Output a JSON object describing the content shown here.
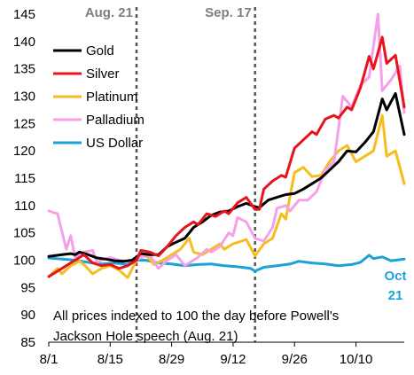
{
  "chart_data": {
    "type": "line",
    "title": "",
    "xlabel": "",
    "ylabel": "",
    "ylim": [
      85,
      145
    ],
    "yticks": [
      85,
      90,
      95,
      100,
      105,
      110,
      115,
      120,
      125,
      130,
      135,
      140,
      145
    ],
    "xlim": [
      "2020-08-01",
      "2020-10-21"
    ],
    "xticks": [
      {
        "date": "2020-08-01",
        "label": "8/1"
      },
      {
        "date": "2020-08-15",
        "label": "8/15"
      },
      {
        "date": "2020-08-29",
        "label": "8/29"
      },
      {
        "date": "2020-09-12",
        "label": "9/12"
      },
      {
        "date": "2020-09-26",
        "label": "9/26"
      },
      {
        "date": "2020-10-10",
        "label": "10/10"
      }
    ],
    "legend_position": "top-left",
    "grid": false,
    "annotations": {
      "vlines": [
        {
          "date": "2020-08-21",
          "label": "Aug. 21"
        },
        {
          "date": "2020-09-17",
          "label": "Sep. 17"
        }
      ],
      "note_line1": "All prices indexed to 100 the day before Powell's",
      "note_line2": "Jackson Hole speech (Aug. 21)",
      "end_label_line1": "Oct",
      "end_label_line2": "21",
      "end_label_color": "#1aa3d8"
    },
    "series": [
      {
        "name": "Gold",
        "color": "#000000",
        "points": [
          [
            "2020-08-01",
            100.7
          ],
          [
            "2020-08-04",
            101.0
          ],
          [
            "2020-08-06",
            101.2
          ],
          [
            "2020-08-07",
            101.0
          ],
          [
            "2020-08-08",
            101.5
          ],
          [
            "2020-08-10",
            101.0
          ],
          [
            "2020-08-12",
            100.4
          ],
          [
            "2020-08-14",
            100.2
          ],
          [
            "2020-08-16",
            99.9
          ],
          [
            "2020-08-18",
            99.8
          ],
          [
            "2020-08-20",
            100.0
          ],
          [
            "2020-08-22",
            101.2
          ],
          [
            "2020-08-24",
            101.0
          ],
          [
            "2020-08-26",
            101.0
          ],
          [
            "2020-08-28",
            102.5
          ],
          [
            "2020-08-30",
            103.3
          ],
          [
            "2020-09-01",
            104.0
          ],
          [
            "2020-09-03",
            106.0
          ],
          [
            "2020-09-05",
            107.0
          ],
          [
            "2020-09-07",
            108.2
          ],
          [
            "2020-09-09",
            108.8
          ],
          [
            "2020-09-11",
            109.0
          ],
          [
            "2020-09-13",
            109.8
          ],
          [
            "2020-09-15",
            110.4
          ],
          [
            "2020-09-17",
            109.8
          ],
          [
            "2020-09-18",
            109.6
          ],
          [
            "2020-09-20",
            111.0
          ],
          [
            "2020-09-22",
            111.5
          ],
          [
            "2020-09-24",
            112.0
          ],
          [
            "2020-09-26",
            112.2
          ],
          [
            "2020-09-28",
            113.0
          ],
          [
            "2020-09-30",
            114.0
          ],
          [
            "2020-10-02",
            115.0
          ],
          [
            "2020-10-04",
            116.5
          ],
          [
            "2020-10-06",
            118.0
          ],
          [
            "2020-10-08",
            120.0
          ],
          [
            "2020-10-10",
            119.8
          ],
          [
            "2020-10-12",
            121.5
          ],
          [
            "2020-10-14",
            123.5
          ],
          [
            "2020-10-16",
            129.5
          ],
          [
            "2020-10-17",
            127.5
          ],
          [
            "2020-10-19",
            130.5
          ],
          [
            "2020-10-21",
            123.0
          ]
        ]
      },
      {
        "name": "Silver",
        "color": "#e8141b",
        "points": [
          [
            "2020-08-01",
            97.0
          ],
          [
            "2020-08-03",
            98.0
          ],
          [
            "2020-08-05",
            99.0
          ],
          [
            "2020-08-07",
            100.0
          ],
          [
            "2020-08-09",
            101.0
          ],
          [
            "2020-08-11",
            99.5
          ],
          [
            "2020-08-13",
            99.0
          ],
          [
            "2020-08-15",
            99.2
          ],
          [
            "2020-08-17",
            98.5
          ],
          [
            "2020-08-19",
            99.0
          ],
          [
            "2020-08-21",
            100.0
          ],
          [
            "2020-08-22",
            101.8
          ],
          [
            "2020-08-24",
            101.5
          ],
          [
            "2020-08-26",
            100.8
          ],
          [
            "2020-08-28",
            102.5
          ],
          [
            "2020-08-30",
            104.5
          ],
          [
            "2020-09-01",
            106.0
          ],
          [
            "2020-09-03",
            107.0
          ],
          [
            "2020-09-04",
            106.5
          ],
          [
            "2020-09-06",
            108.5
          ],
          [
            "2020-09-08",
            108.0
          ],
          [
            "2020-09-10",
            109.0
          ],
          [
            "2020-09-11",
            108.5
          ],
          [
            "2020-09-13",
            110.5
          ],
          [
            "2020-09-15",
            111.5
          ],
          [
            "2020-09-17",
            109.3
          ],
          [
            "2020-09-18",
            109.3
          ],
          [
            "2020-09-19",
            113.0
          ],
          [
            "2020-09-21",
            114.5
          ],
          [
            "2020-09-23",
            115.5
          ],
          [
            "2020-09-24",
            115.2
          ],
          [
            "2020-09-26",
            120.5
          ],
          [
            "2020-09-28",
            122.0
          ],
          [
            "2020-09-30",
            123.5
          ],
          [
            "2020-10-01",
            123.0
          ],
          [
            "2020-10-03",
            125.8
          ],
          [
            "2020-10-05",
            126.5
          ],
          [
            "2020-10-06",
            126.0
          ],
          [
            "2020-10-08",
            128.0
          ],
          [
            "2020-10-09",
            127.5
          ],
          [
            "2020-10-11",
            131.5
          ],
          [
            "2020-10-13",
            137.3
          ],
          [
            "2020-10-14",
            135.0
          ],
          [
            "2020-10-16",
            140.8
          ],
          [
            "2020-10-17",
            136.0
          ],
          [
            "2020-10-19",
            137.5
          ],
          [
            "2020-10-21",
            128.0
          ]
        ]
      },
      {
        "name": "Platinum",
        "color": "#f5bd1f",
        "points": [
          [
            "2020-08-01",
            97.0
          ],
          [
            "2020-08-03",
            98.5
          ],
          [
            "2020-08-04",
            97.5
          ],
          [
            "2020-08-06",
            99.0
          ],
          [
            "2020-08-08",
            99.8
          ],
          [
            "2020-08-09",
            99.2
          ],
          [
            "2020-08-11",
            97.5
          ],
          [
            "2020-08-13",
            98.5
          ],
          [
            "2020-08-15",
            99.0
          ],
          [
            "2020-08-17",
            98.2
          ],
          [
            "2020-08-19",
            96.8
          ],
          [
            "2020-08-21",
            100.0
          ],
          [
            "2020-08-22",
            101.5
          ],
          [
            "2020-08-23",
            101.0
          ],
          [
            "2020-08-25",
            99.2
          ],
          [
            "2020-08-27",
            100.0
          ],
          [
            "2020-08-29",
            101.0
          ],
          [
            "2020-08-31",
            102.0
          ],
          [
            "2020-09-02",
            104.0
          ],
          [
            "2020-09-03",
            101.5
          ],
          [
            "2020-09-05",
            101.0
          ],
          [
            "2020-09-07",
            102.0
          ],
          [
            "2020-09-09",
            103.0
          ],
          [
            "2020-09-10",
            102.0
          ],
          [
            "2020-09-12",
            103.0
          ],
          [
            "2020-09-14",
            103.5
          ],
          [
            "2020-09-15",
            103.8
          ],
          [
            "2020-09-17",
            100.8
          ],
          [
            "2020-09-19",
            103.0
          ],
          [
            "2020-09-21",
            104.0
          ],
          [
            "2020-09-23",
            108.5
          ],
          [
            "2020-09-24",
            107.5
          ],
          [
            "2020-09-26",
            116.0
          ],
          [
            "2020-09-28",
            117.0
          ],
          [
            "2020-09-30",
            115.3
          ],
          [
            "2020-10-02",
            115.5
          ],
          [
            "2020-10-04",
            118.0
          ],
          [
            "2020-10-06",
            120.0
          ],
          [
            "2020-10-08",
            121.0
          ],
          [
            "2020-10-10",
            118.0
          ],
          [
            "2020-10-12",
            119.0
          ],
          [
            "2020-10-14",
            120.0
          ],
          [
            "2020-10-16",
            126.5
          ],
          [
            "2020-10-17",
            119.0
          ],
          [
            "2020-10-19",
            120.0
          ],
          [
            "2020-10-21",
            114.0
          ]
        ]
      },
      {
        "name": "Palladium",
        "color": "#f7a0ea",
        "points": [
          [
            "2020-08-01",
            109.0
          ],
          [
            "2020-08-03",
            108.5
          ],
          [
            "2020-08-05",
            102.0
          ],
          [
            "2020-08-06",
            104.5
          ],
          [
            "2020-08-07",
            100.5
          ],
          [
            "2020-08-09",
            101.5
          ],
          [
            "2020-08-11",
            101.8
          ],
          [
            "2020-08-12",
            99.5
          ],
          [
            "2020-08-13",
            100.0
          ],
          [
            "2020-08-15",
            100.5
          ],
          [
            "2020-08-17",
            100.0
          ],
          [
            "2020-08-19",
            99.8
          ],
          [
            "2020-08-21",
            100.0
          ],
          [
            "2020-08-22",
            100.5
          ],
          [
            "2020-08-24",
            101.0
          ],
          [
            "2020-08-26",
            98.5
          ],
          [
            "2020-08-28",
            100.0
          ],
          [
            "2020-08-30",
            101.0
          ],
          [
            "2020-09-01",
            99.0
          ],
          [
            "2020-09-02",
            99.5
          ],
          [
            "2020-09-04",
            100.5
          ],
          [
            "2020-09-06",
            102.0
          ],
          [
            "2020-09-07",
            101.5
          ],
          [
            "2020-09-09",
            102.5
          ],
          [
            "2020-09-11",
            105.0
          ],
          [
            "2020-09-12",
            104.5
          ],
          [
            "2020-09-13",
            107.8
          ],
          [
            "2020-09-15",
            107.0
          ],
          [
            "2020-09-17",
            104.0
          ],
          [
            "2020-09-19",
            103.5
          ],
          [
            "2020-09-21",
            106.0
          ],
          [
            "2020-09-22",
            109.5
          ],
          [
            "2020-09-24",
            110.0
          ],
          [
            "2020-09-25",
            109.0
          ],
          [
            "2020-09-27",
            111.0
          ],
          [
            "2020-09-29",
            111.0
          ],
          [
            "2020-10-01",
            112.5
          ],
          [
            "2020-10-03",
            116.5
          ],
          [
            "2020-10-05",
            118.0
          ],
          [
            "2020-10-07",
            130.0
          ],
          [
            "2020-10-09",
            128.0
          ],
          [
            "2020-10-11",
            132.0
          ],
          [
            "2020-10-13",
            133.5
          ],
          [
            "2020-10-15",
            145.0
          ],
          [
            "2020-10-16",
            131.0
          ],
          [
            "2020-10-18",
            133.0
          ],
          [
            "2020-10-20",
            135.5
          ],
          [
            "2020-10-21",
            127.0
          ]
        ]
      },
      {
        "name": "US Dollar",
        "color": "#1aa3d8",
        "points": [
          [
            "2020-08-01",
            100.4
          ],
          [
            "2020-08-04",
            100.2
          ],
          [
            "2020-08-07",
            100.0
          ],
          [
            "2020-08-10",
            99.6
          ],
          [
            "2020-08-13",
            99.3
          ],
          [
            "2020-08-16",
            99.5
          ],
          [
            "2020-08-19",
            99.2
          ],
          [
            "2020-08-21",
            100.0
          ],
          [
            "2020-08-23",
            100.0
          ],
          [
            "2020-08-26",
            99.5
          ],
          [
            "2020-08-29",
            99.3
          ],
          [
            "2020-09-01",
            99.0
          ],
          [
            "2020-09-04",
            99.2
          ],
          [
            "2020-09-07",
            99.3
          ],
          [
            "2020-09-10",
            99.0
          ],
          [
            "2020-09-13",
            98.8
          ],
          [
            "2020-09-16",
            98.5
          ],
          [
            "2020-09-17",
            98.0
          ],
          [
            "2020-09-19",
            98.7
          ],
          [
            "2020-09-22",
            99.0
          ],
          [
            "2020-09-25",
            99.3
          ],
          [
            "2020-09-27",
            99.8
          ],
          [
            "2020-09-30",
            99.5
          ],
          [
            "2020-10-03",
            99.3
          ],
          [
            "2020-10-06",
            99.0
          ],
          [
            "2020-10-09",
            99.2
          ],
          [
            "2020-10-11",
            99.6
          ],
          [
            "2020-10-13",
            100.9
          ],
          [
            "2020-10-14",
            100.3
          ],
          [
            "2020-10-16",
            100.6
          ],
          [
            "2020-10-18",
            99.9
          ],
          [
            "2020-10-21",
            100.2
          ]
        ]
      }
    ]
  }
}
